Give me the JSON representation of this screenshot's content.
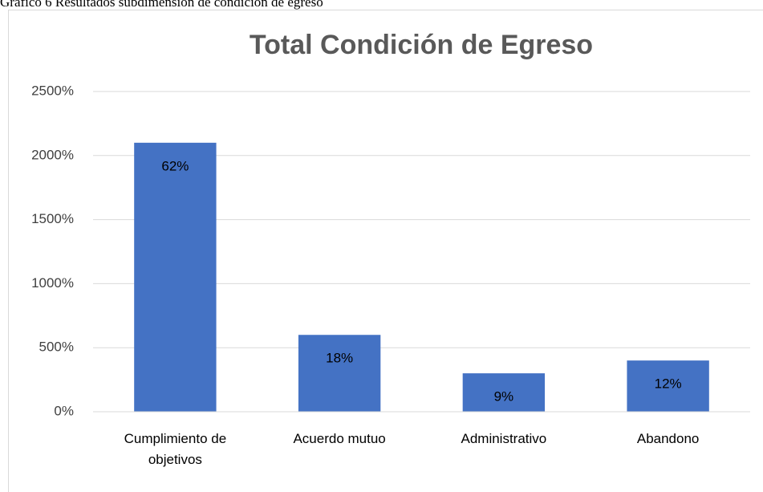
{
  "caption": "Gráfico 6 Resultados subdimensión de condición de egreso",
  "chart_data": {
    "type": "bar",
    "title": "Total Condición de Egreso",
    "categories": [
      "Cumplimiento de objetivos",
      "Acuerdo mutuo",
      "Administrativo",
      "Abandono"
    ],
    "values": [
      2100,
      600,
      300,
      400
    ],
    "annotations": [
      "62%",
      "18%",
      "9%",
      "12%"
    ],
    "color": "#4472c4",
    "ylim": [
      0,
      2500
    ],
    "yticks": [
      {
        "value": 0,
        "label": "0%"
      },
      {
        "value": 500,
        "label": "500%"
      },
      {
        "value": 1000,
        "label": "1000%"
      },
      {
        "value": 1500,
        "label": "1500%"
      },
      {
        "value": 2000,
        "label": "2000%"
      },
      {
        "value": 2500,
        "label": "2500%"
      }
    ],
    "grid": true
  }
}
